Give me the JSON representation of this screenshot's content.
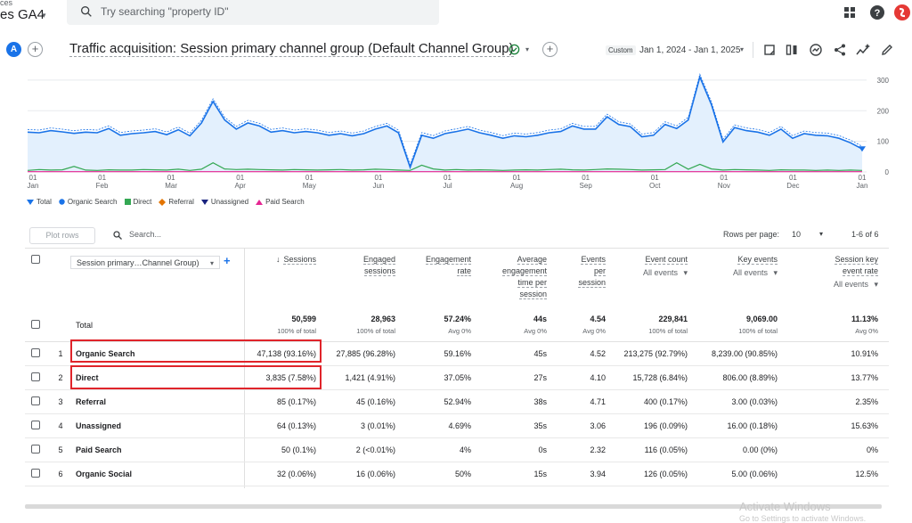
{
  "topbar": {
    "property_small": "ces",
    "property_name": "es GA4",
    "search_placeholder": "Try searching \"property ID\""
  },
  "header": {
    "avatar_letter": "A",
    "report_title": "Traffic acquisition: Session primary channel group (Default Channel Group)",
    "custom_chip": "Custom",
    "date_range": "Jan 1, 2024 - Jan 1, 2025"
  },
  "chart_data": {
    "type": "line",
    "x_tick_labels": [
      [
        "01",
        "Jan"
      ],
      [
        "01",
        "Feb"
      ],
      [
        "01",
        "Mar"
      ],
      [
        "01",
        "Apr"
      ],
      [
        "01",
        "May"
      ],
      [
        "01",
        "Jun"
      ],
      [
        "01",
        "Jul"
      ],
      [
        "01",
        "Aug"
      ],
      [
        "01",
        "Sep"
      ],
      [
        "01",
        "Oct"
      ],
      [
        "01",
        "Nov"
      ],
      [
        "01",
        "Dec"
      ],
      [
        "01",
        "Jan"
      ]
    ],
    "y_ticks": [
      0,
      100,
      200,
      300
    ],
    "ylim": [
      0,
      320
    ],
    "legend": [
      "Total",
      "Organic Search",
      "Direct",
      "Referral",
      "Unassigned",
      "Paid Search"
    ],
    "series": [
      {
        "name": "Organic Search",
        "color": "#1a73e8",
        "values": [
          130,
          128,
          135,
          131,
          126,
          130,
          128,
          142,
          120,
          125,
          128,
          132,
          122,
          138,
          118,
          160,
          230,
          170,
          140,
          160,
          150,
          130,
          135,
          128,
          132,
          128,
          120,
          125,
          118,
          125,
          140,
          150,
          128,
          15,
          120,
          110,
          125,
          132,
          140,
          128,
          120,
          110,
          118,
          115,
          120,
          128,
          132,
          150,
          140,
          140,
          180,
          155,
          148,
          115,
          120,
          155,
          142,
          170,
          310,
          220,
          98,
          145,
          135,
          130,
          120,
          140,
          110,
          125,
          120,
          118,
          110,
          95,
          75
        ]
      },
      {
        "name": "Direct",
        "color": "#34a853",
        "values": [
          5,
          8,
          6,
          7,
          18,
          6,
          5,
          7,
          6,
          6,
          8,
          7,
          6,
          9,
          5,
          9,
          30,
          10,
          8,
          9,
          8,
          7,
          6,
          8,
          7,
          6,
          7,
          8,
          6,
          7,
          9,
          8,
          6,
          5,
          22,
          10,
          6,
          8,
          6,
          7,
          6,
          5,
          6,
          7,
          6,
          8,
          9,
          7,
          6,
          8,
          10,
          9,
          8,
          6,
          7,
          8,
          30,
          9,
          25,
          10,
          6,
          8,
          7,
          6,
          5,
          7,
          6,
          6,
          5,
          6,
          5,
          6,
          5
        ]
      },
      {
        "name": "Paid Search",
        "color": "#e52592",
        "values": [
          1,
          1,
          1,
          1,
          1,
          1,
          1,
          1,
          1,
          1,
          1,
          1,
          1,
          1,
          1,
          1,
          1,
          1,
          1,
          1,
          1,
          1,
          1,
          1,
          1,
          1,
          1,
          1,
          1,
          1,
          1,
          1,
          1,
          1,
          1,
          1,
          1,
          1,
          1,
          1,
          1,
          1,
          1,
          1,
          1,
          1,
          1,
          1,
          1,
          1,
          1,
          1,
          1,
          1,
          1,
          1,
          1,
          1,
          1,
          1,
          1,
          1,
          1,
          1,
          1,
          1,
          1,
          1,
          1,
          1,
          1,
          1,
          1
        ]
      }
    ]
  },
  "table": {
    "plot_rows_label": "Plot rows",
    "search_placeholder": "Search...",
    "rows_per_page_label": "Rows per page:",
    "rows_per_page_value": "10",
    "range_label": "1-6 of 6",
    "dimension_label": "Session primary…Channel Group)",
    "columns": [
      {
        "lines": [
          "Sessions"
        ],
        "sort": "↓"
      },
      {
        "lines": [
          "Engaged",
          "sessions"
        ]
      },
      {
        "lines": [
          "Engagement",
          "rate"
        ]
      },
      {
        "lines": [
          "Average",
          "engagement",
          "time per",
          "session"
        ]
      },
      {
        "lines": [
          "Events",
          "per",
          "session"
        ]
      },
      {
        "lines": [
          "Event count"
        ],
        "sub": "All events"
      },
      {
        "lines": [
          "Key events"
        ],
        "sub": "All events"
      },
      {
        "lines": [
          "Session key",
          "event rate"
        ],
        "sub": "All events"
      }
    ],
    "total": {
      "label": "Total",
      "values": [
        "50,599",
        "28,963",
        "57.24%",
        "44s",
        "4.54",
        "229,841",
        "9,069.00",
        "11.13%"
      ],
      "subs": [
        "100% of total",
        "100% of total",
        "Avg 0%",
        "Avg 0%",
        "Avg 0%",
        "100% of total",
        "100% of total",
        "Avg 0%"
      ]
    },
    "rows": [
      {
        "idx": "1",
        "name": "Organic Search",
        "values": [
          "47,138 (93.16%)",
          "27,885 (96.28%)",
          "59.16%",
          "45s",
          "4.52",
          "213,275 (92.79%)",
          "8,239.00 (90.85%)",
          "10.91%"
        ]
      },
      {
        "idx": "2",
        "name": "Direct",
        "values": [
          "3,835 (7.58%)",
          "1,421 (4.91%)",
          "37.05%",
          "27s",
          "4.10",
          "15,728 (6.84%)",
          "806.00 (8.89%)",
          "13.77%"
        ]
      },
      {
        "idx": "3",
        "name": "Referral",
        "values": [
          "85 (0.17%)",
          "45 (0.16%)",
          "52.94%",
          "38s",
          "4.71",
          "400 (0.17%)",
          "3.00 (0.03%)",
          "2.35%"
        ]
      },
      {
        "idx": "4",
        "name": "Unassigned",
        "values": [
          "64 (0.13%)",
          "3 (0.01%)",
          "4.69%",
          "35s",
          "3.06",
          "196 (0.09%)",
          "16.00 (0.18%)",
          "15.63%"
        ]
      },
      {
        "idx": "5",
        "name": "Paid Search",
        "values": [
          "50 (0.1%)",
          "2 (<0.01%)",
          "4%",
          "0s",
          "2.32",
          "116 (0.05%)",
          "0.00 (0%)",
          "0%"
        ]
      },
      {
        "idx": "6",
        "name": "Organic Social",
        "values": [
          "32 (0.06%)",
          "16 (0.06%)",
          "50%",
          "15s",
          "3.94",
          "126 (0.05%)",
          "5.00 (0.06%)",
          "12.5%"
        ]
      }
    ]
  },
  "watermark": {
    "line1": "Activate Windows",
    "line2": "Go to Settings to activate Windows."
  }
}
